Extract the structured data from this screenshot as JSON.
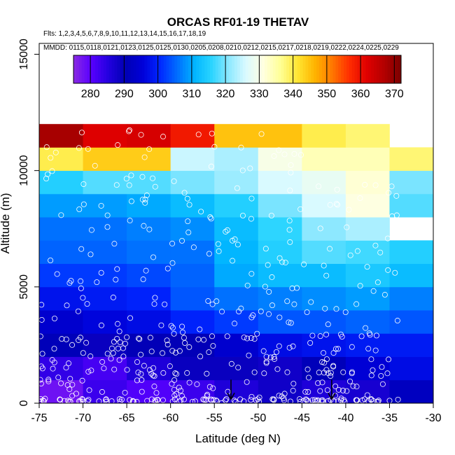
{
  "chart_data": {
    "type": "heatmap",
    "title": "ORCAS RF01-19 THETAV",
    "flights_line": "Flts: 1,2,3,4,5,6,7,8,9,10,11,12,13,14,15,16,17,18,19",
    "dates_line": "MMDD: 0115,0118,0121,0123,0125,0125,0130,0205,0208,0210,0212,0215,0217,0218,0219,0222,0224,0225,0229",
    "xlabel": "Latitude (deg N)",
    "ylabel": "Altitude (m)",
    "xlim": [
      -75,
      -30
    ],
    "ylim": [
      0,
      16000
    ],
    "x_ticks": [
      -75,
      -70,
      -65,
      -60,
      -55,
      -50,
      -45,
      -40,
      -35,
      -30
    ],
    "y_ticks": [
      0,
      5000,
      10000,
      15000
    ],
    "x_tick_labels": [
      "-75",
      "-70",
      "-65",
      "-60",
      "-55",
      "-50",
      "-45",
      "-40",
      "-35",
      "-30"
    ],
    "y_tick_labels": [
      "0",
      "5000",
      "10000",
      "15000"
    ],
    "colorbar": {
      "min": 275,
      "max": 372,
      "ticks": [
        280,
        290,
        300,
        310,
        320,
        330,
        340,
        350,
        360,
        370
      ],
      "tick_labels": [
        "280",
        "290",
        "300",
        "310",
        "320",
        "330",
        "340",
        "350",
        "360",
        "370"
      ],
      "colors": [
        "#8a2be2",
        "#5a00ff",
        "#2400e0",
        "#0000b4",
        "#0000d8",
        "#0026ff",
        "#006cff",
        "#00b4ff",
        "#2ad4ff",
        "#8ce8ff",
        "#dafaff",
        "#ffffe0",
        "#ffff96",
        "#ffe632",
        "#ffb400",
        "#ff7800",
        "#ff2d00",
        "#e00000",
        "#b40000",
        "#7a0000"
      ]
    },
    "x_bin_edges": [
      -75,
      -70,
      -65,
      -60,
      -55,
      -50,
      -45,
      -40,
      -35,
      -30
    ],
    "y_bin_edges": [
      0,
      1000,
      2000,
      3000,
      4000,
      5000,
      6000,
      7000,
      8000,
      9000,
      10000,
      11000,
      12000
    ],
    "values": [
      [
        278,
        283,
        281,
        283,
        286,
        288,
        286,
        287,
        292
      ],
      [
        284,
        282,
        286,
        289,
        289,
        288,
        291,
        295,
        297
      ],
      [
        291,
        289,
        290,
        290,
        294,
        297,
        298,
        299,
        299
      ],
      [
        294,
        296,
        297,
        300,
        302,
        304,
        304,
        305,
        304
      ],
      [
        298,
        299,
        300,
        304,
        306,
        307,
        308,
        309,
        307
      ],
      [
        302,
        302,
        303,
        305,
        310,
        312,
        312,
        314,
        312
      ],
      [
        305,
        305,
        306,
        306,
        311,
        315,
        318,
        317,
        315
      ],
      [
        306,
        306,
        307,
        308,
        312,
        316,
        321,
        323,
        null
      ],
      [
        309,
        309,
        310,
        312,
        315,
        320,
        326,
        331,
        318
      ],
      [
        315,
        318,
        318,
        320,
        322,
        326,
        328,
        332,
        320
      ],
      [
        340,
        344,
        344,
        325,
        323,
        330,
        334,
        334,
        338
      ],
      [
        368,
        362,
        363,
        359,
        345,
        345,
        340,
        338,
        null
      ]
    ],
    "markers": [
      {
        "x": -53.1,
        "y": 350
      },
      {
        "x": -41.6,
        "y": 350
      }
    ]
  }
}
